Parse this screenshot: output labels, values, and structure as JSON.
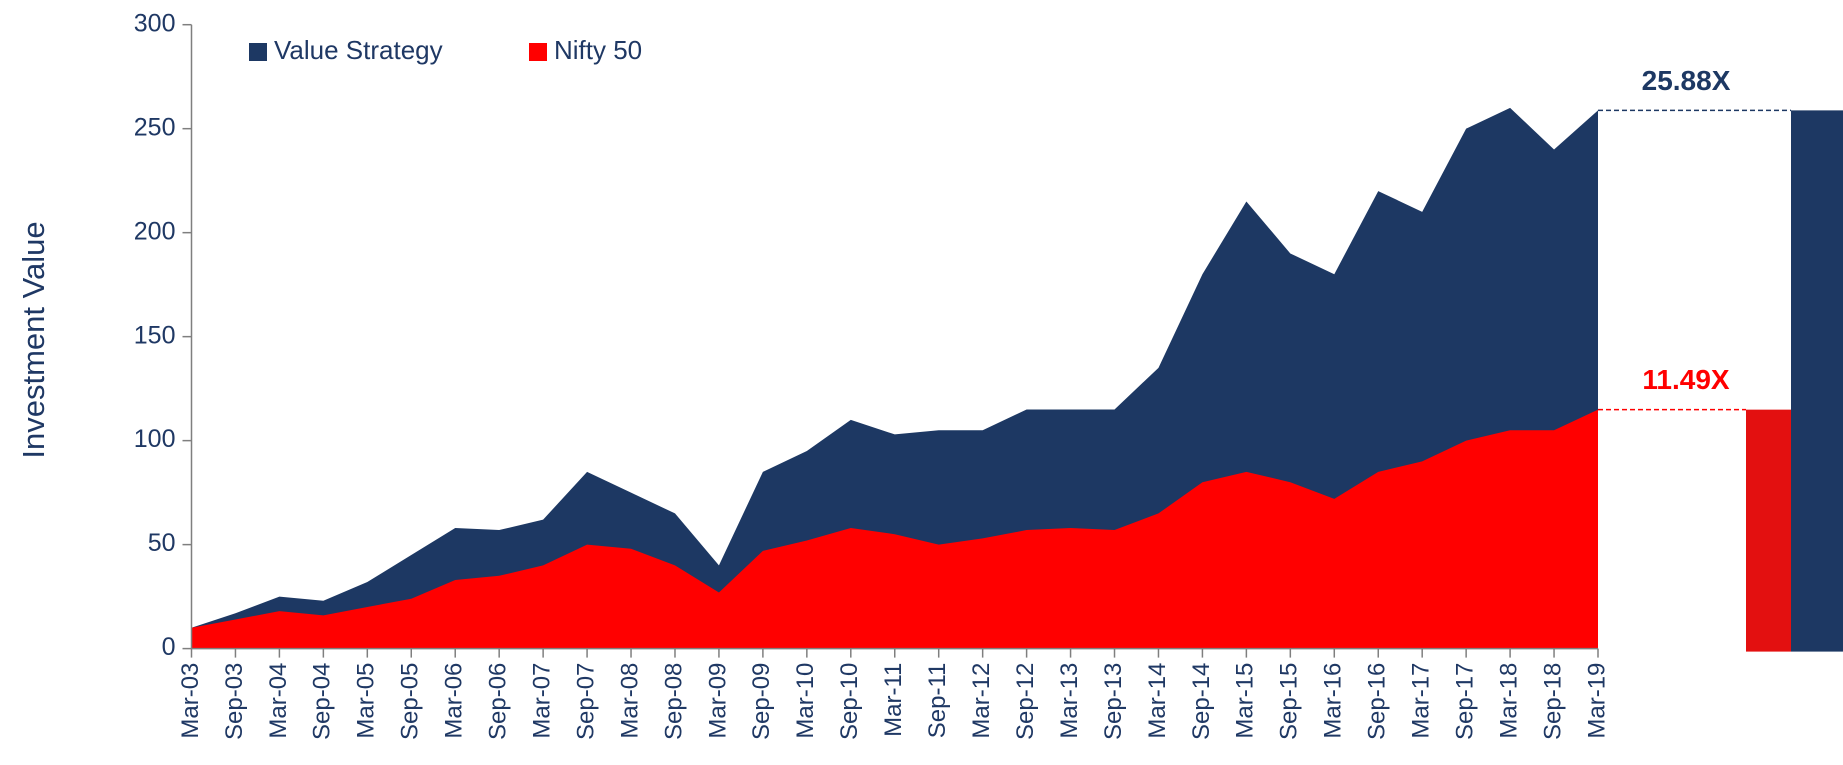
{
  "chart_data": {
    "type": "area",
    "y_axis_label": "Investment Value",
    "categories": [
      "Mar-03",
      "Sep-03",
      "Mar-04",
      "Sep-04",
      "Mar-05",
      "Sep-05",
      "Mar-06",
      "Sep-06",
      "Mar-07",
      "Sep-07",
      "Mar-08",
      "Sep-08",
      "Mar-09",
      "Sep-09",
      "Mar-10",
      "Sep-10",
      "Mar-11",
      "Sep-11",
      "Mar-12",
      "Sep-12",
      "Mar-13",
      "Sep-13",
      "Mar-14",
      "Sep-14",
      "Mar-15",
      "Sep-15",
      "Mar-16",
      "Sep-16",
      "Mar-17",
      "Sep-17",
      "Mar-18",
      "Sep-18",
      "Mar-19"
    ],
    "series": [
      {
        "name": "Value Strategy",
        "color": "#1d3863",
        "values": [
          10,
          17,
          25,
          23,
          32,
          45,
          58,
          57,
          62,
          85,
          75,
          65,
          40,
          85,
          95,
          110,
          103,
          105,
          105,
          115,
          115,
          115,
          135,
          180,
          215,
          190,
          180,
          220,
          210,
          250,
          260,
          240,
          258.8
        ]
      },
      {
        "name": "Nifty 50",
        "color": "#ff0000",
        "values": [
          10,
          14,
          18,
          16,
          20,
          24,
          33,
          35,
          40,
          50,
          48,
          40,
          27,
          47,
          52,
          58,
          55,
          50,
          53,
          57,
          58,
          57,
          65,
          80,
          85,
          80,
          72,
          85,
          90,
          100,
          105,
          105,
          114.9
        ]
      }
    ],
    "annotations": [
      {
        "text": "25.88X",
        "color": "#1d3863"
      },
      {
        "text": "11.49X",
        "color": "#ff0000"
      }
    ],
    "end_bar_colors": [
      "#1d3863",
      "#e31010"
    ],
    "ylim": [
      0,
      300
    ],
    "yticks": [
      0,
      50,
      100,
      150,
      200,
      250,
      300
    ],
    "legend": "top-left"
  }
}
